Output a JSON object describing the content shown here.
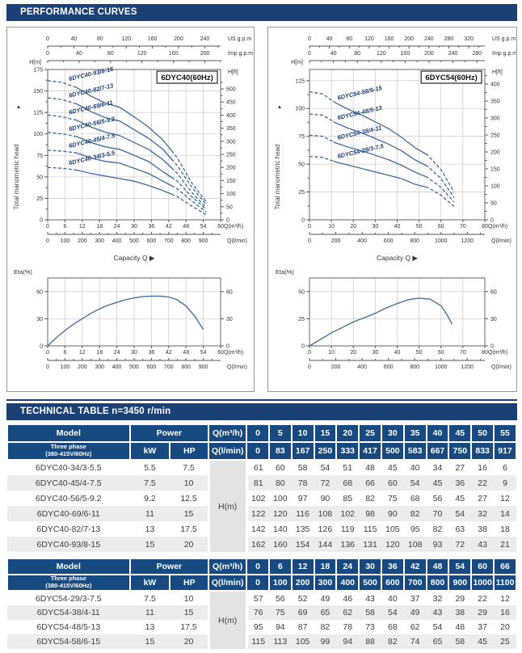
{
  "banners": {
    "performance": "PERFORMANCE CURVES",
    "technical": "TECHNICAL TABLE n=3450 r/min"
  },
  "colors": {
    "banner_bg": "#1a4176",
    "header_bg": "#164a81",
    "curve": "#3c6fa5",
    "curve_label": "#1e3f6e",
    "grid": "#cfcfcf",
    "axis": "#555555",
    "tick_text": "#333333",
    "stripe": "#ececec",
    "hm_col": "#e3e3e3",
    "panel_border": "#999999",
    "body_text": "#3d3d3d"
  },
  "chart_data": [
    {
      "type": "line",
      "panel": "left",
      "kind": "head",
      "title": "6DYC40(60Hz)",
      "ylabel": "Total manometric head",
      "xlabel": "Capacity Q",
      "x_units": {
        "m3h": "Q(m³/h)",
        "lmin": "Q(l/min)",
        "usgpm": "US g.p.m",
        "impgpm": "Imp g.p.m"
      },
      "y_units": {
        "m": "H[m]",
        "ft": "H[ft]"
      },
      "xmax_m3h": 60,
      "ymax_m": 175,
      "x_ticks_m3h": [
        0,
        6,
        12,
        18,
        24,
        30,
        36,
        42,
        48,
        54,
        60
      ],
      "x_ticks_lmin": [
        0,
        100,
        200,
        300,
        400,
        500,
        600,
        700,
        800,
        900
      ],
      "x_ticks_usgpm": [
        0,
        40,
        80,
        120,
        160,
        200,
        240
      ],
      "x_ticks_impgpm": [
        0,
        40,
        80,
        120,
        160,
        200
      ],
      "y_ticks_m": [
        0,
        25,
        50,
        75,
        100,
        125,
        150,
        175
      ],
      "y_ticks_ft": [
        0,
        50,
        100,
        150,
        200,
        250,
        300,
        350,
        400,
        450,
        500
      ],
      "lmin_per_m3h": 16.6667,
      "usgpm_per_m3h": 4.4029,
      "impgpm_per_m3h": 3.6662,
      "ft_per_m": 3.2808,
      "solid_q_range": [
        9,
        43
      ],
      "x": [
        0,
        5,
        10,
        15,
        20,
        25,
        30,
        35,
        40,
        45,
        50,
        55
      ],
      "series": [
        {
          "name": "6DYC40-93/8-15",
          "values": [
            162,
            160,
            154,
            144,
            136,
            131,
            120,
            108,
            93,
            72,
            43,
            21
          ]
        },
        {
          "name": "6DYC40-82/7-13",
          "values": [
            142,
            140,
            135,
            126,
            119,
            115,
            105,
            95,
            82,
            63,
            38,
            18
          ]
        },
        {
          "name": "6DYC40-69/6-11",
          "values": [
            122,
            120,
            116,
            108,
            102,
            98,
            90,
            82,
            70,
            54,
            32,
            14
          ]
        },
        {
          "name": "6DYC40-56/5-9.2",
          "values": [
            102,
            100,
            97,
            90,
            85,
            82,
            75,
            68,
            56,
            45,
            27,
            12
          ]
        },
        {
          "name": "6DYC40-45/4-7.5",
          "values": [
            81,
            80,
            78,
            72,
            68,
            66,
            60,
            54,
            45,
            36,
            22,
            9
          ]
        },
        {
          "name": "6DYC40-34/3-5.5",
          "values": [
            61,
            60,
            58,
            54,
            51,
            48,
            45,
            40,
            34,
            27,
            16,
            6
          ]
        }
      ]
    },
    {
      "type": "line",
      "panel": "left",
      "kind": "eta",
      "ylabel": "Eta(%)",
      "x_units": {
        "m3h": "Q(m³/h)",
        "lmin": "Q(l/min)"
      },
      "xmax_m3h": 60,
      "ymax": 75,
      "x_ticks_m3h": [
        0,
        6,
        12,
        18,
        24,
        30,
        36,
        42,
        48,
        54,
        60
      ],
      "x_ticks_lmin": [
        0,
        100,
        200,
        300,
        400,
        500,
        600,
        700,
        800,
        900
      ],
      "lmin_per_m3h": 16.6667,
      "y_ticks_left": [
        0,
        30,
        60
      ],
      "y_ticks_right": [
        0,
        30,
        60
      ],
      "x": [
        0,
        3,
        6,
        9,
        12,
        15,
        18,
        21,
        24,
        27,
        30,
        33,
        36,
        39,
        42,
        45,
        48,
        51,
        54
      ],
      "values": [
        0,
        9,
        17,
        24,
        30,
        36,
        41,
        45,
        48,
        51,
        53,
        54.5,
        55,
        55,
        54,
        51,
        44,
        33,
        18
      ]
    },
    {
      "type": "line",
      "panel": "right",
      "kind": "head",
      "title": "6DYC54(60Hz)",
      "ylabel": "Total manometric head",
      "xlabel": "Capacity Q",
      "x_units": {
        "m3h": "Q(m³/h)",
        "lmin": "Q(l/min)",
        "usgpm": "US g.p.m",
        "impgpm": "Imp g.p.m"
      },
      "y_units": {
        "m": "H[m]",
        "ft": "H[ft]"
      },
      "xmax_m3h": 80,
      "ymax_m": 135,
      "x_ticks_m3h": [
        0,
        10,
        20,
        30,
        40,
        50,
        60,
        70,
        80
      ],
      "x_ticks_lmin": [
        0,
        200,
        400,
        600,
        800,
        1000,
        1200
      ],
      "x_ticks_usgpm": [
        0,
        40,
        80,
        120,
        160,
        200,
        240,
        280,
        320
      ],
      "x_ticks_impgpm": [
        0,
        40,
        80,
        120,
        160,
        200,
        240,
        280
      ],
      "y_ticks_m": [
        0,
        25,
        50,
        75,
        100,
        125
      ],
      "y_ticks_ft": [
        0,
        50,
        100,
        150,
        200,
        250,
        300,
        350,
        400
      ],
      "lmin_per_m3h": 16.6667,
      "usgpm_per_m3h": 4.4029,
      "impgpm_per_m3h": 3.6662,
      "ft_per_m": 3.2808,
      "solid_q_range": [
        11,
        53
      ],
      "x": [
        0,
        6,
        12,
        18,
        24,
        30,
        36,
        42,
        48,
        54,
        60,
        66
      ],
      "series": [
        {
          "name": "6DYC54-58/6-15",
          "values": [
            115,
            113,
            105,
            99,
            94,
            88,
            82,
            74,
            65,
            58,
            45,
            25
          ]
        },
        {
          "name": "6DYC54-48/5-13",
          "values": [
            95,
            94,
            87,
            82,
            78,
            73,
            68,
            62,
            54,
            48,
            37,
            20
          ]
        },
        {
          "name": "6DYC54-38/4-11",
          "values": [
            76,
            75,
            69,
            65,
            62,
            58,
            54,
            49,
            43,
            38,
            29,
            16
          ]
        },
        {
          "name": "6DYC54-29/3-7.5",
          "values": [
            57,
            56,
            52,
            49,
            46,
            43,
            40,
            37,
            32,
            29,
            22,
            12
          ]
        }
      ]
    },
    {
      "type": "line",
      "panel": "right",
      "kind": "eta",
      "ylabel": "Eta(%)",
      "x_units": {
        "m3h": "Q(m³/h)",
        "lmin": "Q(l/min)"
      },
      "xmax_m3h": 80,
      "ymax": 62.5,
      "x_ticks_m3h": [
        0,
        10,
        20,
        30,
        40,
        50,
        60,
        70,
        80
      ],
      "x_ticks_lmin": [
        0,
        200,
        400,
        600,
        800,
        1000,
        1200
      ],
      "lmin_per_m3h": 16.6667,
      "y_ticks_left": [
        0,
        25,
        50
      ],
      "y_ticks_right": [
        0,
        30,
        60
      ],
      "x": [
        0,
        5,
        10,
        15,
        20,
        25,
        30,
        35,
        40,
        45,
        50,
        55,
        60,
        63,
        65
      ],
      "values": [
        0,
        6,
        12,
        17,
        22,
        26,
        30,
        35,
        39,
        42.5,
        44,
        43,
        37,
        28,
        20
      ]
    }
  ],
  "tables": [
    {
      "head": {
        "model": "Model",
        "power": "Power",
        "kw": "kW",
        "hp": "HP",
        "three_phase_1": "Three phase",
        "three_phase_2": "(380-415V/60Hz)",
        "q_m3h": "Q(m³/h)",
        "q_lmin": "Q(l/min)",
        "h_m": "H(m)"
      },
      "q_m3h_values": [
        0,
        5,
        10,
        15,
        20,
        25,
        30,
        35,
        40,
        45,
        50,
        55
      ],
      "q_lmin_values": [
        0,
        83,
        167,
        250,
        333,
        417,
        500,
        583,
        667,
        750,
        833,
        917
      ],
      "rows": [
        {
          "model": "6DYC40-34/3-5.5",
          "kw": "5.5",
          "hp": "7.5",
          "h": [
            61,
            60,
            58,
            54,
            51,
            48,
            45,
            40,
            34,
            27,
            16,
            6
          ]
        },
        {
          "model": "6DYC40-45/4-7.5",
          "kw": "7.5",
          "hp": "10",
          "h": [
            81,
            80,
            78,
            72,
            68,
            66,
            60,
            54,
            45,
            36,
            22,
            9
          ]
        },
        {
          "model": "6DYC40-56/5-9.2",
          "kw": "9.2",
          "hp": "12.5",
          "h": [
            102,
            100,
            97,
            90,
            85,
            82,
            75,
            68,
            56,
            45,
            27,
            12
          ]
        },
        {
          "model": "6DYC40-69/6-11",
          "kw": "11",
          "hp": "15",
          "h": [
            122,
            120,
            116,
            108,
            102,
            98,
            90,
            82,
            70,
            54,
            32,
            14
          ]
        },
        {
          "model": "6DYC40-82/7-13",
          "kw": "13",
          "hp": "17.5",
          "h": [
            142,
            140,
            135,
            126,
            119,
            115,
            105,
            95,
            82,
            63,
            38,
            18
          ]
        },
        {
          "model": "6DYC40-93/8-15",
          "kw": "15",
          "hp": "20",
          "h": [
            162,
            160,
            154,
            144,
            136,
            131,
            120,
            108,
            93,
            72,
            43,
            21
          ]
        }
      ]
    },
    {
      "head": {
        "model": "Model",
        "power": "Power",
        "kw": "kW",
        "hp": "HP",
        "three_phase_1": "Three phase",
        "three_phase_2": "(380-415V/60Hz)",
        "q_m3h": "Q(m³/h)",
        "q_lmin": "Q(l/min)",
        "h_m": "H(m)"
      },
      "q_m3h_values": [
        0,
        6,
        12,
        18,
        24,
        30,
        36,
        42,
        48,
        54,
        60,
        66
      ],
      "q_lmin_values": [
        0,
        100,
        200,
        300,
        400,
        500,
        600,
        700,
        800,
        900,
        1000,
        1100
      ],
      "rows": [
        {
          "model": "6DYC54-29/3-7.5",
          "kw": "7.5",
          "hp": "10",
          "h": [
            57,
            56,
            52,
            49,
            46,
            43,
            40,
            37,
            32,
            29,
            22,
            12
          ]
        },
        {
          "model": "6DYC54-38/4-11",
          "kw": "11",
          "hp": "15",
          "h": [
            76,
            75,
            69,
            65,
            62,
            58,
            54,
            49,
            43,
            38,
            29,
            16
          ]
        },
        {
          "model": "6DYC54-48/5-13",
          "kw": "13",
          "hp": "17.5",
          "h": [
            95,
            94,
            87,
            82,
            78,
            73,
            68,
            62,
            54,
            48,
            37,
            20
          ]
        },
        {
          "model": "6DYC54-58/6-15",
          "kw": "15",
          "hp": "20",
          "h": [
            115,
            113,
            105,
            99,
            94,
            88,
            82,
            74,
            65,
            58,
            45,
            25
          ]
        }
      ]
    }
  ]
}
